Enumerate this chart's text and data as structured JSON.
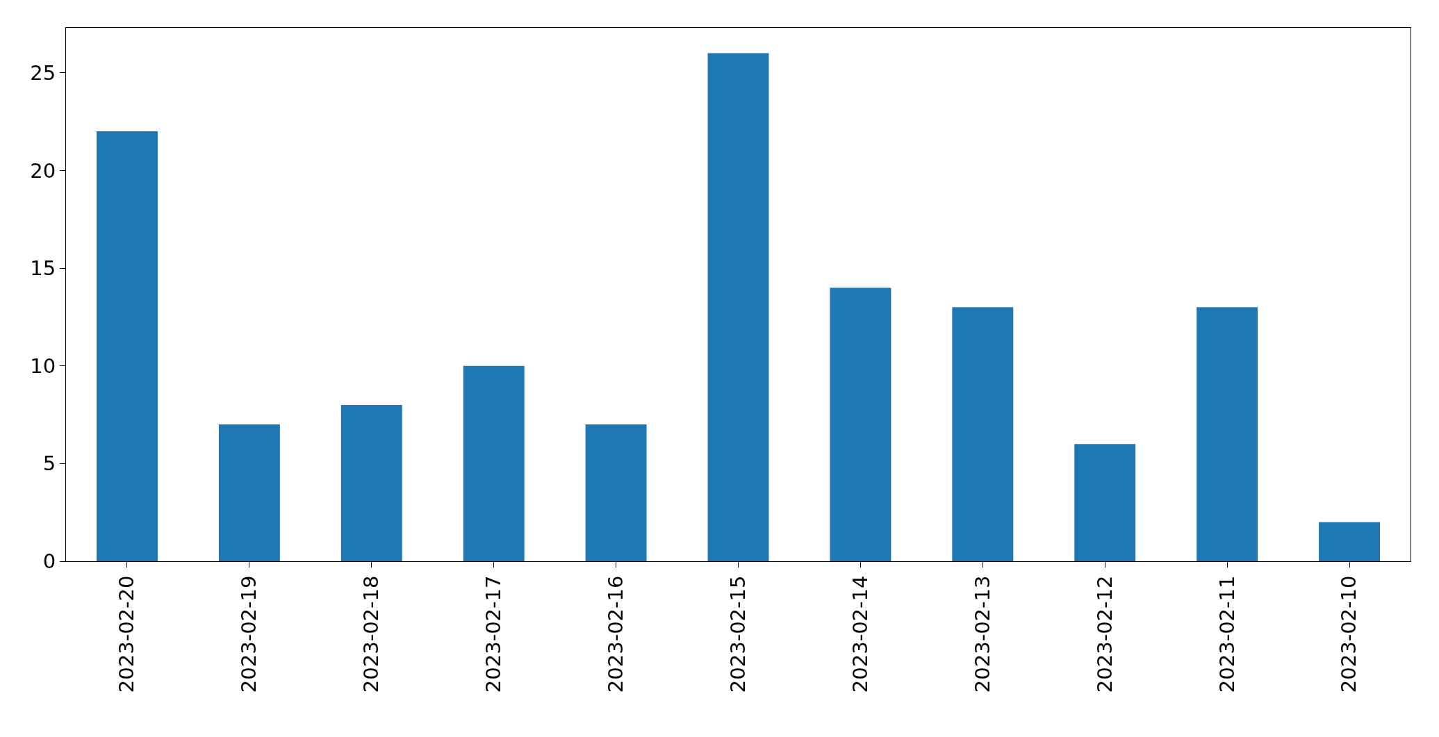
{
  "chart_data": {
    "type": "bar",
    "categories": [
      "2023-02-20",
      "2023-02-19",
      "2023-02-18",
      "2023-02-17",
      "2023-02-16",
      "2023-02-15",
      "2023-02-14",
      "2023-02-13",
      "2023-02-12",
      "2023-02-11",
      "2023-02-10"
    ],
    "values": [
      22,
      7,
      8,
      10,
      7,
      26,
      14,
      13,
      6,
      13,
      2
    ],
    "color": "#1f77b4",
    "ylim": [
      0,
      27.3
    ],
    "yticks": [
      0,
      5,
      10,
      15,
      20,
      25
    ]
  }
}
